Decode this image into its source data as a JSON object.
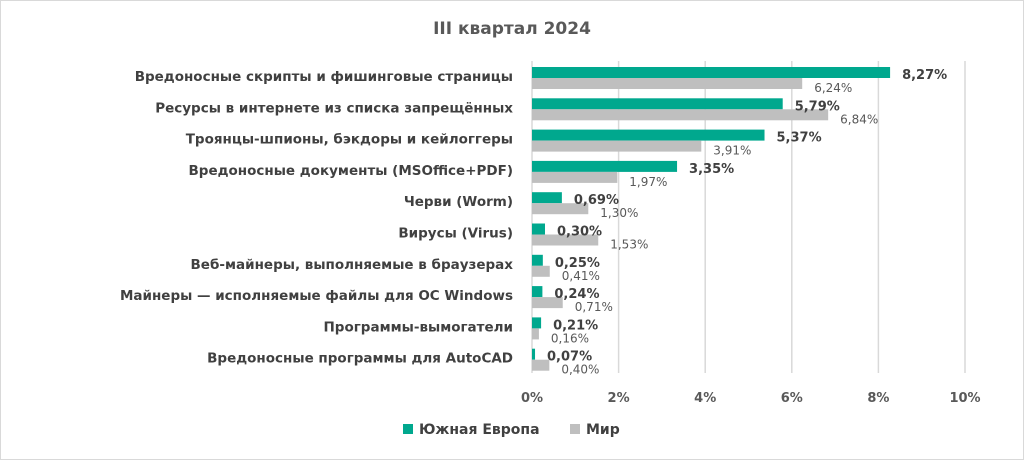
{
  "chart_data": {
    "type": "bar",
    "orientation": "horizontal",
    "title": "III квартал 2024",
    "categories": [
      "Вредоносные скрипты и фишинговые страницы",
      "Ресурсы в интернете из списка запрещённых",
      "Троянцы-шпионы, бэкдоры и кейлоггеры",
      "Вредоносные документы (MSOffice+PDF)",
      "Черви (Worm)",
      "Вирусы (Virus)",
      "Веб-майнеры, выполняемые в браузерах",
      "Майнеры — исполняемые файлы для ОС Windows",
      "Программы-вымогатели",
      "Вредоносные программы для AutoCAD"
    ],
    "series": [
      {
        "name": "Южная Европа",
        "color": "#00a88e",
        "values": [
          8.27,
          5.79,
          5.37,
          3.35,
          0.69,
          0.3,
          0.25,
          0.24,
          0.21,
          0.07
        ],
        "labels": [
          "8,27%",
          "5,79%",
          "5,37%",
          "3,35%",
          "0,69%",
          "0,30%",
          "0,25%",
          "0,24%",
          "0,21%",
          "0,07%"
        ]
      },
      {
        "name": "Мир",
        "color": "#bfbfbf",
        "values": [
          6.24,
          6.84,
          3.91,
          1.97,
          1.3,
          1.53,
          0.41,
          0.71,
          0.16,
          0.4
        ],
        "labels": [
          "6,24%",
          "6,84%",
          "3,91%",
          "1,97%",
          "1,30%",
          "1,53%",
          "0,41%",
          "0,71%",
          "0,16%",
          "0,40%"
        ]
      }
    ],
    "xlim": [
      0,
      10
    ],
    "xticks": [
      0,
      2,
      4,
      6,
      8,
      10
    ],
    "xtick_labels": [
      "0%",
      "2%",
      "4%",
      "6%",
      "8%",
      "10%"
    ],
    "grid": true,
    "legend": "bottom"
  }
}
